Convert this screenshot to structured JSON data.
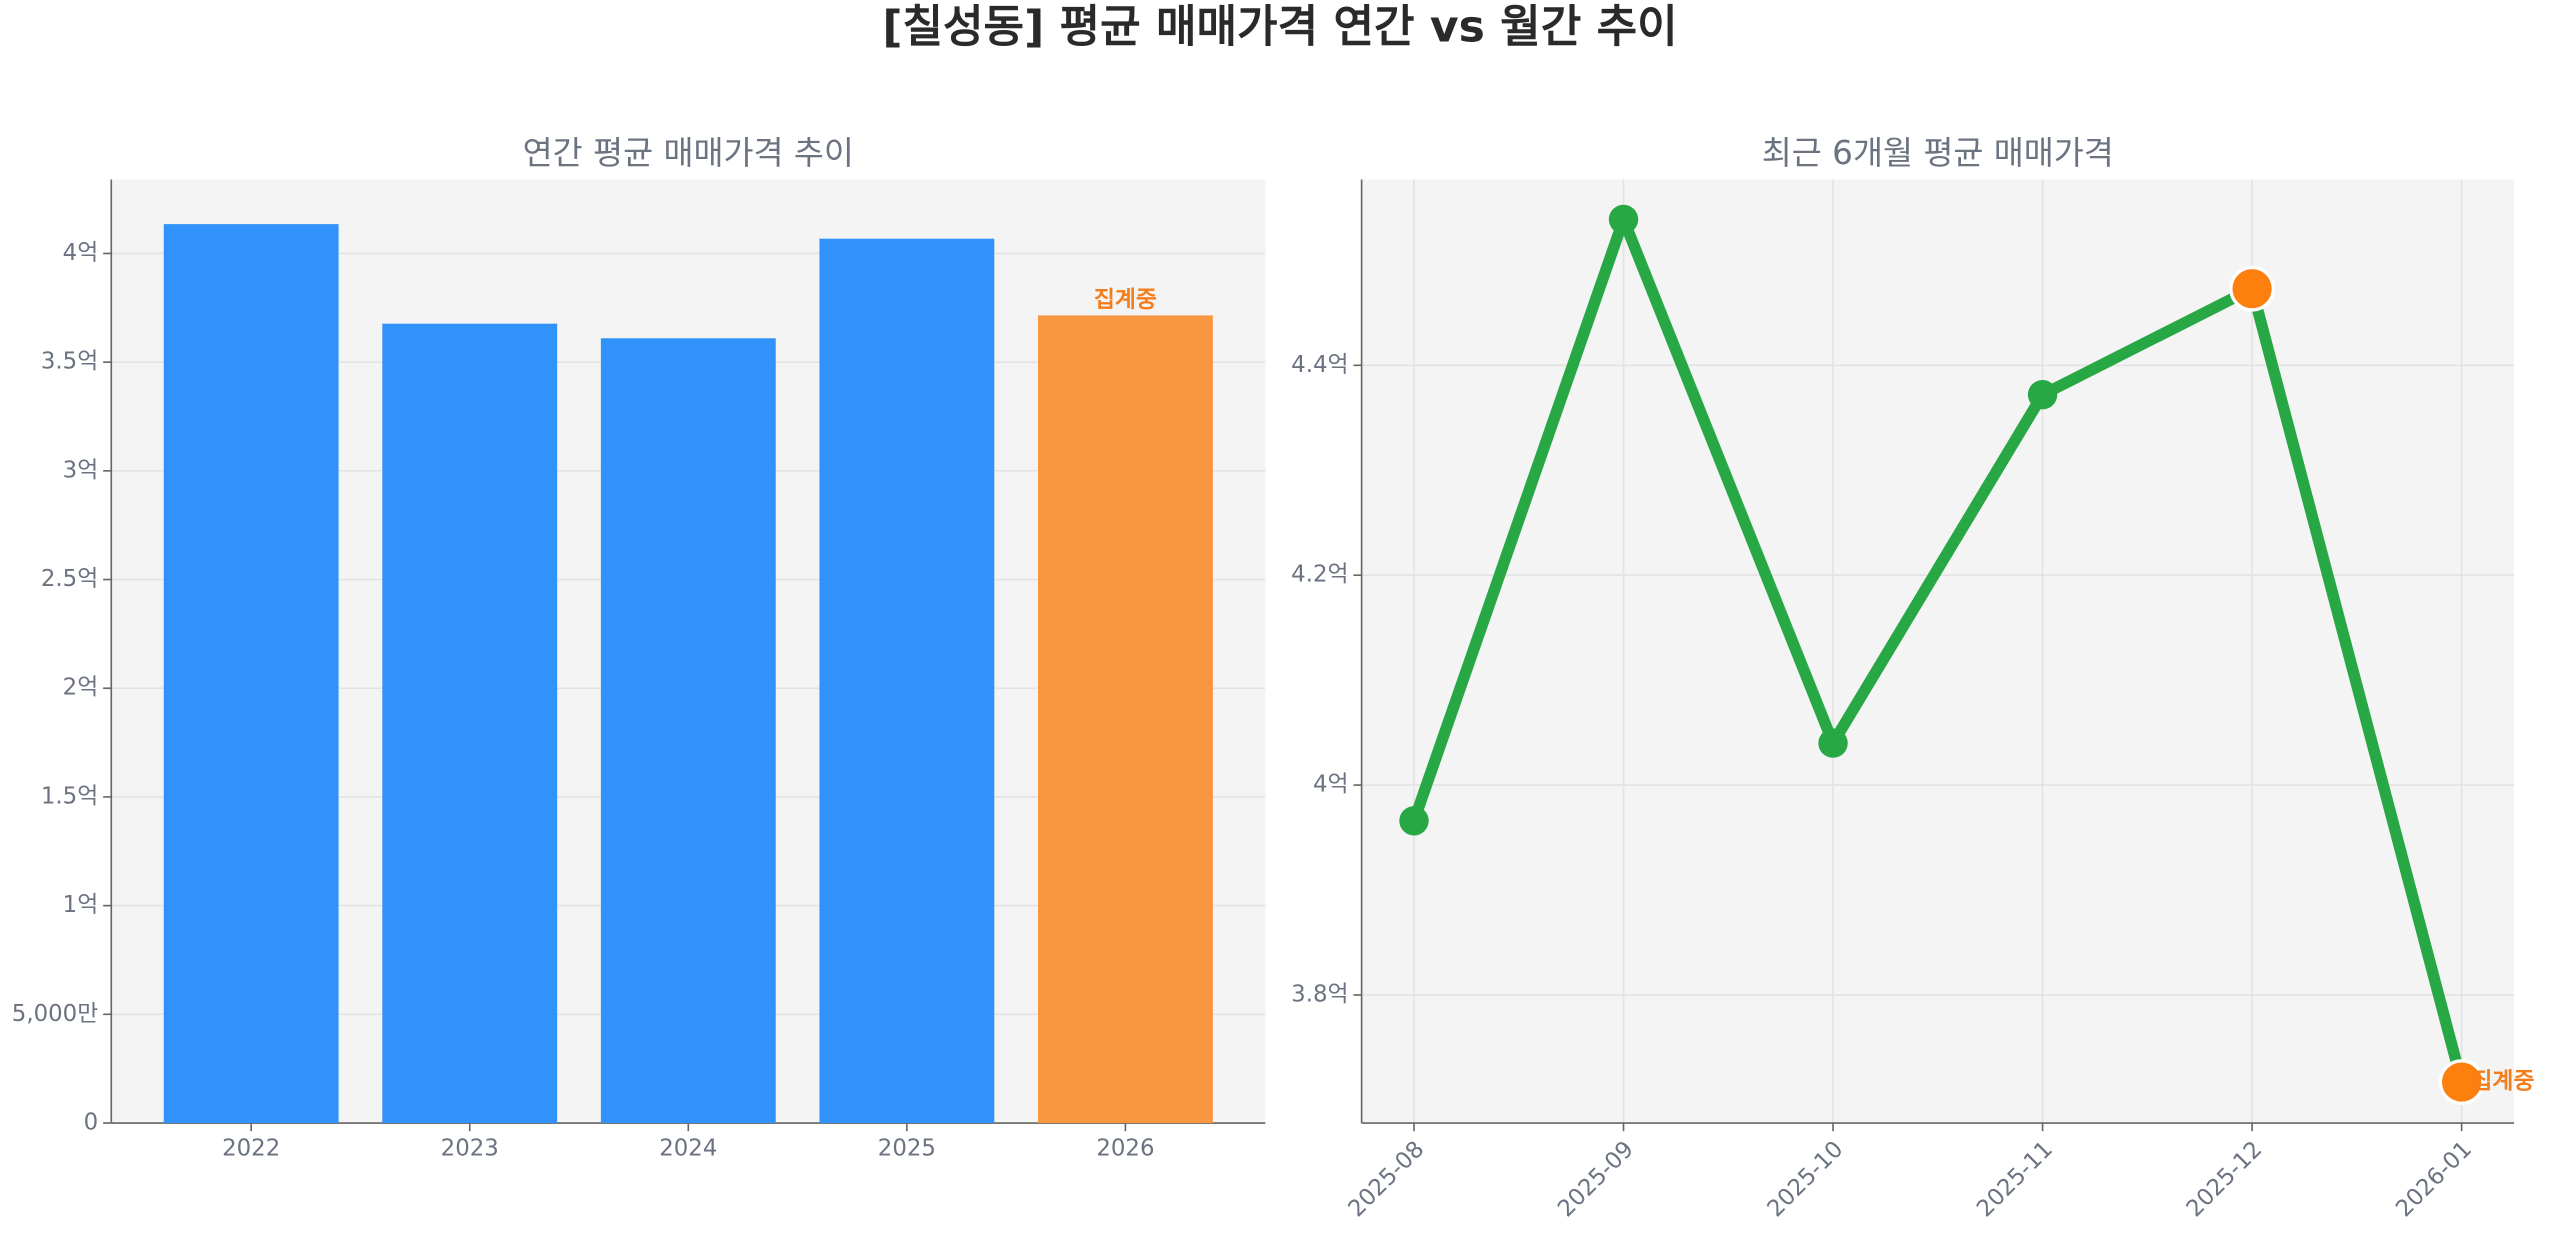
{
  "title": "[칠성동] 평균 매매가격 연간 vs 월간 추이",
  "chart_data": [
    {
      "type": "bar",
      "title": "연간 평균 매매가격 추이",
      "categories": [
        "2022",
        "2023",
        "2024",
        "2025",
        "2026"
      ],
      "values": [
        4.135,
        3.677,
        3.61,
        4.068,
        3.715
      ],
      "colors": [
        "#3192fb",
        "#3192fb",
        "#3192fb",
        "#3192fb",
        "#f99740"
      ],
      "ylim": [
        0,
        4.34
      ],
      "yticks": [
        0,
        {
          "value": 0.5,
          "label": "5,000만"
        },
        {
          "value": 1,
          "label": "1억"
        },
        {
          "value": 1.5,
          "label": "1.5억"
        },
        {
          "value": 2,
          "label": "2억"
        },
        {
          "value": 2.5,
          "label": "2.5억"
        },
        {
          "value": 3,
          "label": "3억"
        },
        {
          "value": 3.5,
          "label": "3.5억"
        },
        {
          "value": 4,
          "label": "4억"
        }
      ],
      "grid": true,
      "annotation": {
        "index": 4,
        "text": "집계중",
        "color": "#f47d1a"
      }
    },
    {
      "type": "line",
      "title": "최근 6개월 평균 매매가격",
      "categories": [
        "2025-08",
        "2025-09",
        "2025-10",
        "2025-11",
        "2025-12",
        "2026-01"
      ],
      "values": [
        3.966,
        4.539,
        4.04,
        4.372,
        4.473,
        3.717
      ],
      "color": "#28a745",
      "marker_colors": [
        "#28a745",
        "#28a745",
        "#28a745",
        "#28a745",
        "#fd7f0e",
        "#fd7f0e"
      ],
      "ylim": [
        3.678,
        4.577
      ],
      "yticks": [
        {
          "value": 3.8,
          "label": "3.8억"
        },
        {
          "value": 4,
          "label": "4억"
        },
        {
          "value": 4.2,
          "label": "4.2억"
        },
        {
          "value": 4.4,
          "label": "4.4억"
        }
      ],
      "grid": true,
      "annotation": {
        "index": 5,
        "text": "집계중",
        "color": "#f47d1a"
      }
    }
  ]
}
